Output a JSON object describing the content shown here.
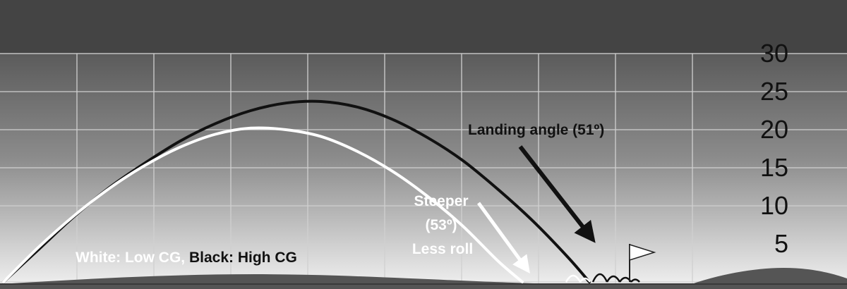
{
  "chart_data": {
    "type": "line",
    "title": "",
    "xlabel": "",
    "ylabel": "",
    "ylim": [
      0,
      30
    ],
    "y_ticks": [
      "5",
      "10",
      "15",
      "20",
      "25",
      "30"
    ],
    "grid": true,
    "series": [
      {
        "color": "#111111",
        "x": [
          0,
          5,
          10,
          15,
          20,
          25,
          30,
          35,
          40,
          45,
          50,
          55,
          60,
          65,
          70,
          75,
          80,
          83
        ],
        "y": [
          0,
          4.3,
          8.6,
          12.4,
          15.6,
          18.5,
          20.8,
          22.5,
          23.5,
          23.7,
          23.0,
          21.4,
          19.0,
          16.0,
          12.2,
          8.0,
          3.2,
          0
        ],
        "landing_angle_deg": 51
      },
      {
        "color": "#ffffff",
        "x": [
          0,
          5,
          10,
          15,
          20,
          25,
          30,
          35,
          40,
          45,
          50,
          55,
          60,
          65,
          70,
          73.5
        ],
        "y": [
          0,
          4.6,
          8.7,
          12.3,
          15.3,
          17.7,
          19.4,
          20.2,
          20.0,
          19.1,
          17.2,
          14.6,
          11.3,
          7.4,
          2.8,
          0
        ],
        "landing_angle_deg": 53
      }
    ],
    "annotations": {
      "landing": "Landing angle (51º)",
      "steeper_1": "Steeper",
      "steeper_2": "(53º)",
      "steeper_3": "Less roll",
      "legend_white": "White: Low CG, ",
      "legend_black": "Black: High CG"
    },
    "colors": {
      "sky_top": "#424242",
      "sky_bottom": "#f2f2f2",
      "header_band": "#444444",
      "ground": "#555555",
      "grid": "#d0d0d0",
      "flag": "#ffffff"
    }
  }
}
